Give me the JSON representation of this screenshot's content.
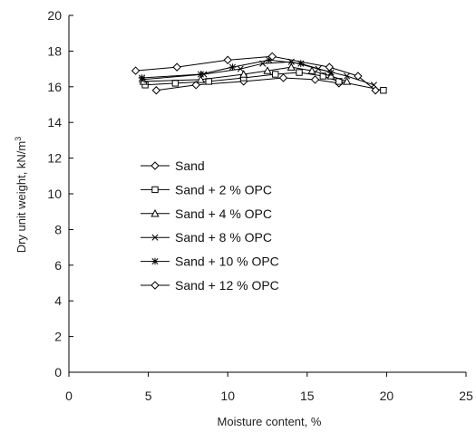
{
  "chart_data": {
    "type": "line",
    "title": "",
    "xlabel": "Moisture content, %",
    "ylabel_main": "Dry unit weight, kN/m",
    "ylabel_sup": "3",
    "xlim": [
      0,
      25
    ],
    "ylim": [
      0,
      20
    ],
    "xticks": [
      0,
      5,
      10,
      15,
      20,
      25
    ],
    "yticks": [
      0,
      2,
      4,
      6,
      8,
      10,
      12,
      14,
      16,
      18,
      20
    ],
    "grid": false,
    "legend_position": "center-left",
    "series": [
      {
        "name": "Sand",
        "marker": "diamond",
        "x": [
          5.5,
          8.0,
          11.0,
          13.5,
          15.5,
          17.0
        ],
        "y": [
          15.8,
          16.1,
          16.3,
          16.5,
          16.4,
          16.2
        ]
      },
      {
        "name": "Sand + 2 % OPC",
        "marker": "square",
        "x": [
          4.8,
          6.7,
          8.8,
          11.0,
          13.0,
          14.5,
          16.0,
          17.0,
          19.8
        ],
        "y": [
          16.1,
          16.2,
          16.3,
          16.5,
          16.7,
          16.8,
          16.6,
          16.3,
          15.8
        ]
      },
      {
        "name": "Sand + 4 % OPC",
        "marker": "triangle",
        "x": [
          4.7,
          8.3,
          11.0,
          12.5,
          14.0,
          15.3,
          16.5,
          17.5
        ],
        "y": [
          16.3,
          16.4,
          16.7,
          16.9,
          17.1,
          16.9,
          16.6,
          16.3
        ]
      },
      {
        "name": "Sand + 8 % OPC",
        "marker": "x",
        "x": [
          4.6,
          8.5,
          10.8,
          12.2,
          14.0,
          15.7,
          17.5,
          19.2
        ],
        "y": [
          16.4,
          16.7,
          17.0,
          17.3,
          17.4,
          17.0,
          16.6,
          16.1
        ]
      },
      {
        "name": "Sand + 10 % OPC",
        "marker": "star",
        "x": [
          4.6,
          8.3,
          10.3,
          12.6,
          14.6,
          16.5
        ],
        "y": [
          16.5,
          16.7,
          17.1,
          17.5,
          17.3,
          16.8
        ]
      },
      {
        "name": "Sand + 12 % OPC",
        "marker": "diamond",
        "x": [
          4.2,
          6.8,
          10.0,
          12.8,
          16.4,
          18.2,
          19.3
        ],
        "y": [
          16.9,
          17.1,
          17.5,
          17.7,
          17.1,
          16.6,
          15.8
        ]
      }
    ]
  }
}
